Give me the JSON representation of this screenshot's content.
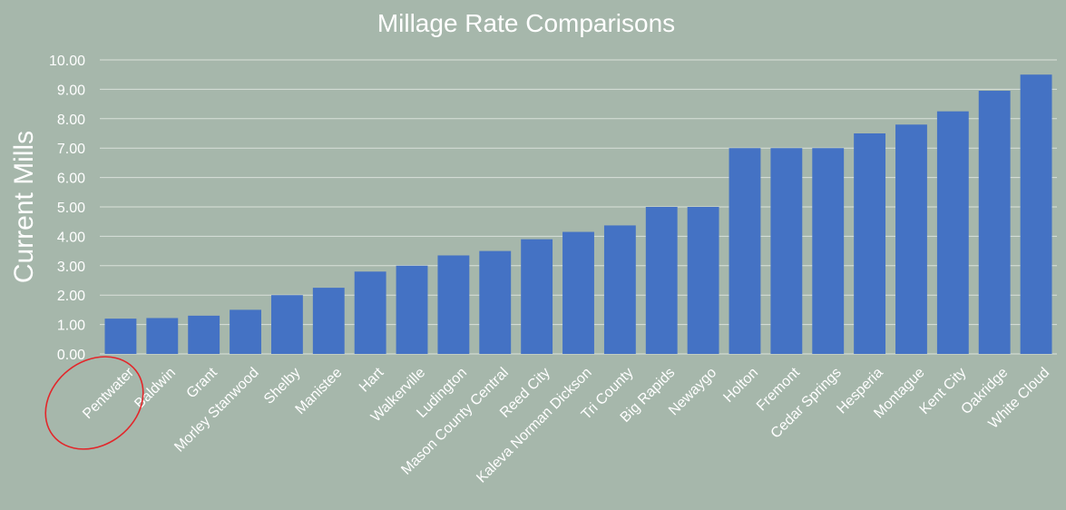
{
  "colors": {
    "background": "#a6b7ab",
    "bar": "#4472c4",
    "text": "#ffffff",
    "gridline": "#d9e0da",
    "highlight_ellipse": "#e3262a"
  },
  "chart_data": {
    "type": "bar",
    "title": "Millage Rate Comparisons",
    "xlabel": "",
    "ylabel": "Current Mills",
    "ylim": [
      0,
      10
    ],
    "y_ticks": [
      "0.00",
      "1.00",
      "2.00",
      "3.00",
      "4.00",
      "5.00",
      "6.00",
      "7.00",
      "8.00",
      "9.00",
      "10.00"
    ],
    "grid": true,
    "categories": [
      "Pentwater",
      "Baldwin",
      "Grant",
      "Morley Stanwood",
      "Shelby",
      "Manistee",
      "Hart",
      "Walkerville",
      "Ludington",
      "Mason County Central",
      "Reed City",
      "Kaleva Norman Dickson",
      "Tri County",
      "Big Rapids",
      "Newaygo",
      "Holton",
      "Fremont",
      "Cedar Springs",
      "Hesperia",
      "Montague",
      "Kent City",
      "Oakridge",
      "White Cloud"
    ],
    "values": [
      1.2,
      1.22,
      1.3,
      1.5,
      2.0,
      2.25,
      2.8,
      3.0,
      3.35,
      3.5,
      3.9,
      4.15,
      4.37,
      5.0,
      5.0,
      7.0,
      7.0,
      7.0,
      7.5,
      7.8,
      8.25,
      8.95,
      9.5
    ],
    "highlighted_category": "Pentwater"
  }
}
